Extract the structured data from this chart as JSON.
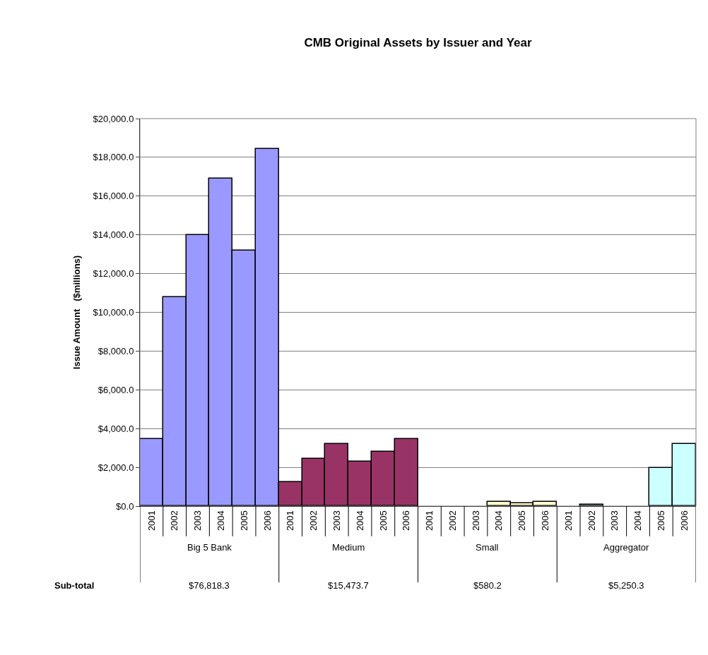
{
  "chart_data": {
    "type": "bar",
    "title": "CMB Original Assets by Issuer and Year",
    "ylabel": "Issue Amount   ($millions)",
    "categories": [
      "2001",
      "2002",
      "2003",
      "2004",
      "2005",
      "2006",
      "2001",
      "2002",
      "2003",
      "2004",
      "2005",
      "2006",
      "2001",
      "2002",
      "2003",
      "2004",
      "2005",
      "2006",
      "2001",
      "2002",
      "2003",
      "2004",
      "2005",
      "2006"
    ],
    "series": [
      {
        "color": "#9999ff",
        "values": [
          3450,
          10800,
          14000,
          16900,
          13200,
          18450,
          null,
          null,
          null,
          null,
          null,
          null,
          null,
          null,
          null,
          null,
          null,
          null,
          null,
          null,
          null,
          null,
          null,
          null
        ]
      },
      {
        "color": "#993366",
        "values": [
          null,
          null,
          null,
          null,
          null,
          null,
          1250,
          2450,
          3200,
          2300,
          2800,
          3450,
          null,
          null,
          null,
          null,
          null,
          null,
          null,
          null,
          null,
          null,
          null,
          null
        ]
      },
      {
        "color": "#ffffcc",
        "values": [
          null,
          null,
          null,
          null,
          null,
          null,
          null,
          null,
          null,
          null,
          null,
          null,
          null,
          null,
          null,
          220,
          140,
          220,
          null,
          null,
          null,
          null,
          null,
          null
        ]
      },
      {
        "color": "#ccffff",
        "values": [
          null,
          null,
          null,
          null,
          null,
          null,
          null,
          null,
          null,
          null,
          null,
          null,
          null,
          null,
          null,
          null,
          null,
          null,
          null,
          70,
          null,
          null,
          1960,
          3220
        ]
      }
    ],
    "ylim": [
      0,
      20000
    ],
    "yticks": [
      {
        "value": 0,
        "label": "$0.0"
      },
      {
        "value": 2000,
        "label": "$2,000.0"
      },
      {
        "value": 4000,
        "label": "$4,000.0"
      },
      {
        "value": 6000,
        "label": "$6,000.0"
      },
      {
        "value": 8000,
        "label": "$8,000.0"
      },
      {
        "value": 10000,
        "label": "$10,000.0"
      },
      {
        "value": 12000,
        "label": "$12,000.0"
      },
      {
        "value": 14000,
        "label": "$14,000.0"
      },
      {
        "value": 16000,
        "label": "$16,000.0"
      },
      {
        "value": 18000,
        "label": "$18,000.0"
      },
      {
        "value": 20000,
        "label": "$20,000.0"
      }
    ],
    "grid": "y",
    "legend": false,
    "annotations": [
      "Big 5 Bank",
      "Medium",
      "Small",
      "Aggregator",
      "Sub-total",
      "$76,818.3",
      "$15,473.7",
      "$580.2",
      "$5,250.3"
    ]
  }
}
